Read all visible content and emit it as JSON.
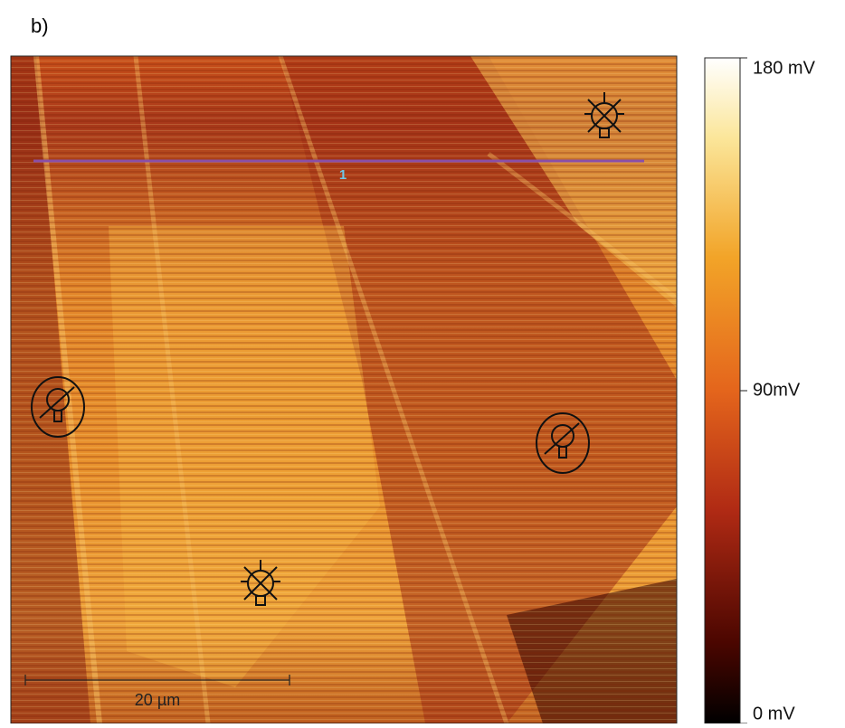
{
  "panel_label": "b)",
  "profile_label": "1",
  "scale_bar": "20 µm",
  "colorbar": {
    "lim": [
      0,
      180
    ],
    "ticks": [
      {
        "value": 0,
        "label": "0 mV"
      },
      {
        "value": 90,
        "label": "90mV"
      },
      {
        "value": 180,
        "label": "180 mV"
      }
    ]
  }
}
